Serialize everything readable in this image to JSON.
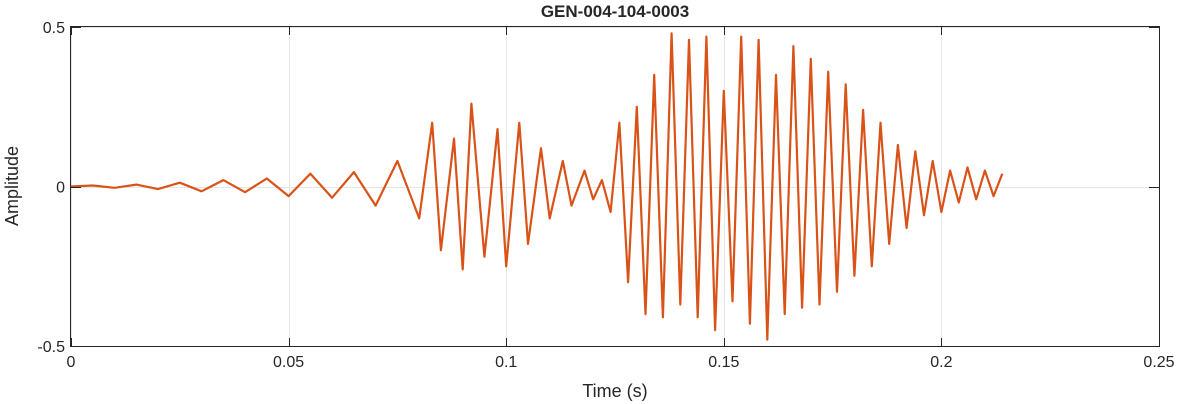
{
  "chart_data": {
    "type": "line",
    "title": "GEN-004-104-0003",
    "xlabel": "Time (s)",
    "ylabel": "Amplitude",
    "xlim": [
      0,
      0.25
    ],
    "ylim": [
      -0.5,
      0.5
    ],
    "xticks": [
      0,
      0.05,
      0.1,
      0.15,
      0.2,
      0.25
    ],
    "xtick_labels": [
      "0",
      "0.05",
      "0.1",
      "0.15",
      "0.2",
      "0.25"
    ],
    "yticks": [
      -0.5,
      0,
      0.5
    ],
    "ytick_labels": [
      "-0.5",
      "0",
      "0.5"
    ],
    "grid": true,
    "legend": false,
    "color": "#D95319",
    "series": [
      {
        "x": [
          0,
          0.005,
          0.01,
          0.015,
          0.02,
          0.025,
          0.03,
          0.035,
          0.04,
          0.045,
          0.05,
          0.055,
          0.06,
          0.065,
          0.07,
          0.075,
          0.08,
          0.083,
          0.085,
          0.088,
          0.09,
          0.092,
          0.095,
          0.098,
          0.1,
          0.103,
          0.105,
          0.108,
          0.11,
          0.113,
          0.115,
          0.118,
          0.12,
          0.122,
          0.124,
          0.126,
          0.128,
          0.13,
          0.132,
          0.134,
          0.136,
          0.138,
          0.14,
          0.142,
          0.144,
          0.146,
          0.148,
          0.15,
          0.152,
          0.154,
          0.156,
          0.158,
          0.16,
          0.162,
          0.164,
          0.166,
          0.168,
          0.17,
          0.172,
          0.174,
          0.176,
          0.178,
          0.18,
          0.182,
          0.184,
          0.186,
          0.188,
          0.19,
          0.192,
          0.194,
          0.196,
          0.198,
          0.2,
          0.202,
          0.204,
          0.206,
          0.208,
          0.21,
          0.212,
          0.214
        ],
        "y": [
          0,
          0.003,
          -0.004,
          0.006,
          -0.008,
          0.012,
          -0.015,
          0.02,
          -0.018,
          0.025,
          -0.03,
          0.04,
          -0.035,
          0.045,
          -0.06,
          0.08,
          -0.1,
          0.2,
          -0.2,
          0.15,
          -0.26,
          0.26,
          -0.22,
          0.18,
          -0.25,
          0.2,
          -0.18,
          0.12,
          -0.1,
          0.08,
          -0.06,
          0.05,
          -0.04,
          0.02,
          -0.08,
          0.2,
          -0.3,
          0.25,
          -0.4,
          0.35,
          -0.41,
          0.48,
          -0.37,
          0.46,
          -0.41,
          0.47,
          -0.45,
          0.3,
          -0.36,
          0.47,
          -0.43,
          0.46,
          -0.48,
          0.35,
          -0.4,
          0.44,
          -0.38,
          0.4,
          -0.37,
          0.36,
          -0.33,
          0.32,
          -0.28,
          0.24,
          -0.25,
          0.2,
          -0.18,
          0.13,
          -0.13,
          0.11,
          -0.09,
          0.08,
          -0.08,
          0.05,
          -0.05,
          0.06,
          -0.04,
          0.05,
          -0.03,
          0.04
        ]
      }
    ]
  }
}
